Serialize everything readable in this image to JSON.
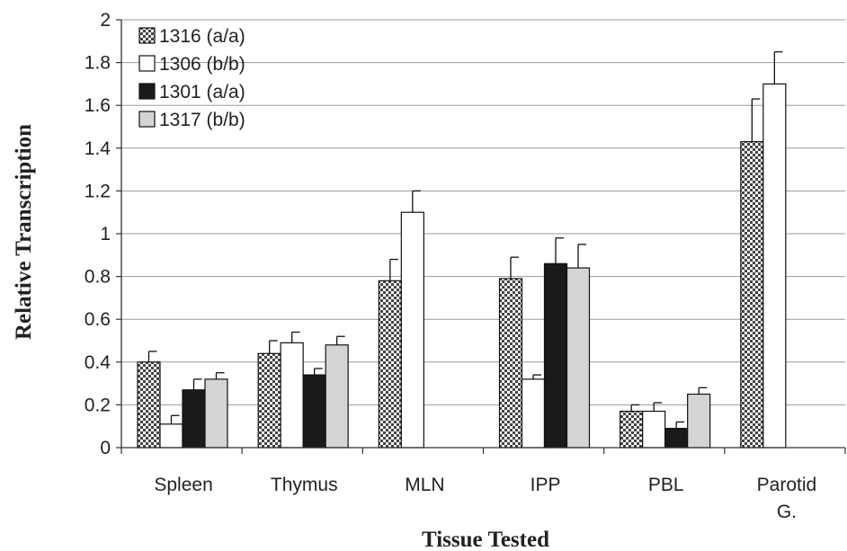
{
  "chart_data": {
    "type": "bar",
    "title": "",
    "xlabel": "Tissue Tested",
    "ylabel": "Relative Transcription",
    "ylim": [
      0,
      2
    ],
    "yticks": [
      "0",
      "0.2",
      "0.4",
      "0.6",
      "0.8",
      "1",
      "1.2",
      "1.4",
      "1.6",
      "1.8",
      "2"
    ],
    "grid": true,
    "legend_position": "top-left",
    "categories": [
      [
        "Spleen"
      ],
      [
        "Thymus"
      ],
      [
        "MLN"
      ],
      [
        "IPP"
      ],
      [
        "PBL"
      ],
      [
        "Parotid",
        "G."
      ]
    ],
    "series": [
      {
        "name": "1316 (a/a)",
        "pattern": "checker",
        "color": "#777777",
        "values": [
          0.4,
          0.44,
          0.78,
          0.79,
          0.17,
          1.43
        ],
        "errors": [
          0.05,
          0.06,
          0.1,
          0.1,
          0.03,
          0.2
        ]
      },
      {
        "name": "1306 (b/b)",
        "pattern": "solid",
        "color": "#ffffff",
        "values": [
          0.11,
          0.49,
          1.1,
          0.32,
          0.17,
          1.7
        ],
        "errors": [
          0.04,
          0.05,
          0.1,
          0.02,
          0.04,
          0.15
        ]
      },
      {
        "name": "1301 (a/a)",
        "pattern": "solid",
        "color": "#1a1a1a",
        "values": [
          0.27,
          0.34,
          null,
          0.86,
          0.09,
          null
        ],
        "errors": [
          0.05,
          0.03,
          null,
          0.12,
          0.03,
          null
        ]
      },
      {
        "name": "1317 (b/b)",
        "pattern": "solid",
        "color": "#d4d4d4",
        "values": [
          0.32,
          0.48,
          null,
          0.84,
          0.25,
          null
        ],
        "errors": [
          0.03,
          0.04,
          null,
          0.11,
          0.03,
          null
        ]
      }
    ]
  }
}
